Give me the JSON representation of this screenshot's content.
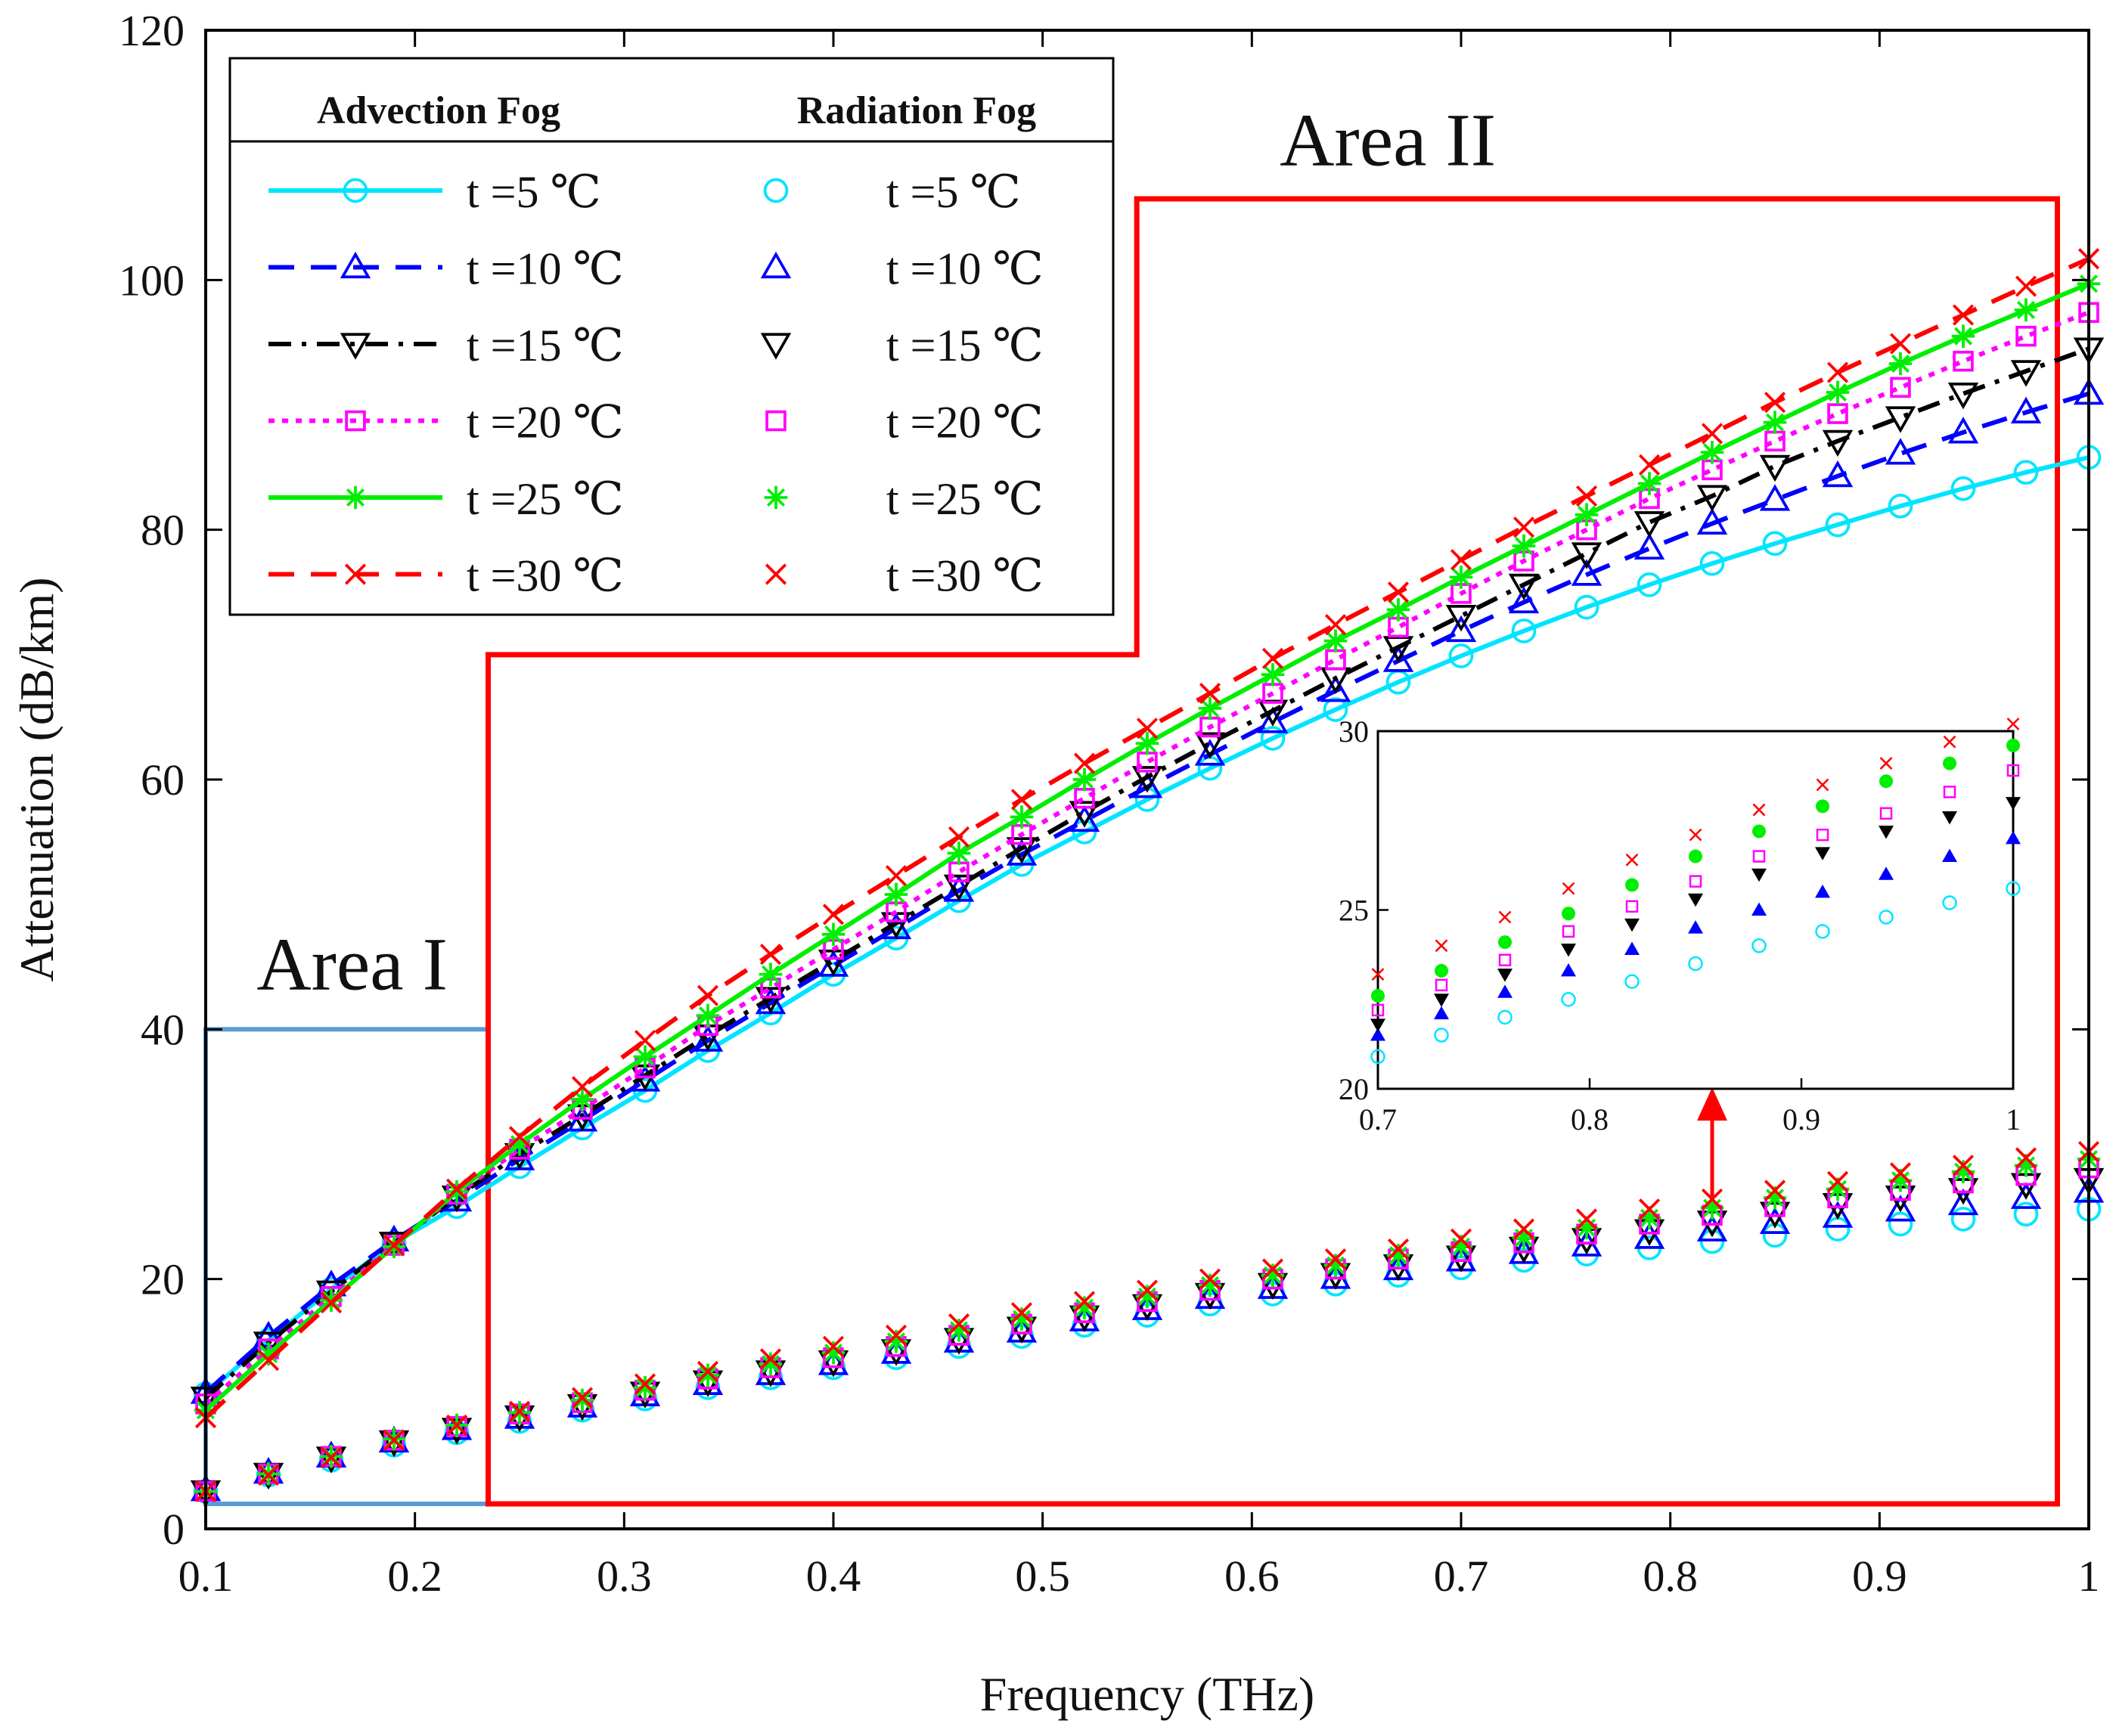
{
  "chart_data": {
    "type": "line",
    "xlabel": "Frequency (THz)",
    "ylabel": "Attenuation (dB/km)",
    "xlim": [
      0.1,
      1
    ],
    "ylim": [
      0,
      120
    ],
    "x_ticks": [
      "0.1",
      "0.2",
      "0.3",
      "0.4",
      "0.5",
      "0.6",
      "0.7",
      "0.8",
      "0.9",
      "1"
    ],
    "y_ticks": [
      "0",
      "20",
      "40",
      "60",
      "80",
      "100",
      "120"
    ],
    "x": [
      0.1,
      0.13,
      0.16,
      0.19,
      0.22,
      0.25,
      0.28,
      0.31,
      0.34,
      0.37,
      0.4,
      0.43,
      0.46,
      0.49,
      0.52,
      0.55,
      0.58,
      0.61,
      0.64,
      0.67,
      0.7,
      0.73,
      0.76,
      0.79,
      0.82,
      0.85,
      0.88,
      0.91,
      0.94,
      0.97,
      1.0
    ],
    "legend": {
      "advection_heading": "Advection Fog",
      "radiation_heading": "Radiation Fog",
      "entries": [
        "t =5 ℃",
        "t =10 ℃",
        "t =15 ℃",
        "t =20 ℃",
        "t =25 ℃",
        "t =30 ℃"
      ]
    },
    "series": [
      {
        "name": "Advection Fog t=5 ℃",
        "group": "advection",
        "color": "#00e5ff",
        "marker": "circle",
        "line": "solid",
        "values": [
          10.8,
          15.1,
          19.2,
          22.9,
          25.8,
          29.0,
          32.1,
          35.1,
          38.3,
          41.3,
          44.4,
          47.3,
          50.3,
          53.2,
          55.8,
          58.4,
          60.9,
          63.3,
          65.6,
          67.8,
          69.9,
          71.9,
          73.8,
          75.6,
          77.3,
          78.9,
          80.4,
          81.9,
          83.3,
          84.6,
          85.8
        ]
      },
      {
        "name": "Advection Fog t=10 ℃",
        "group": "advection",
        "color": "#0000ff",
        "marker": "triangle-up",
        "line": "dashed",
        "values": [
          10.9,
          15.4,
          19.5,
          23.1,
          26.3,
          29.6,
          32.7,
          35.9,
          39.1,
          42.1,
          45.1,
          48.1,
          51.1,
          54.0,
          56.7,
          59.4,
          62.0,
          64.6,
          67.1,
          69.5,
          71.9,
          74.2,
          76.4,
          78.5,
          80.5,
          82.4,
          84.3,
          86.1,
          87.8,
          89.4,
          90.9
        ]
      },
      {
        "name": "Advection Fog t=15 ℃",
        "group": "advection",
        "color": "#000000",
        "marker": "triangle-down",
        "line": "dashdot",
        "values": [
          10.5,
          14.9,
          19.0,
          22.9,
          26.6,
          30.0,
          33.1,
          36.3,
          39.5,
          42.5,
          45.5,
          48.5,
          51.5,
          54.5,
          57.4,
          60.2,
          62.9,
          65.5,
          68.1,
          70.6,
          73.1,
          75.6,
          78.1,
          80.6,
          82.7,
          85.1,
          87.1,
          89.0,
          90.9,
          92.7,
          94.5
        ]
      },
      {
        "name": "Advection Fog t=20 ℃",
        "group": "advection",
        "color": "#ff00ff",
        "marker": "square",
        "line": "dotted",
        "values": [
          10.0,
          14.4,
          18.6,
          22.7,
          26.8,
          30.4,
          33.6,
          36.9,
          40.3,
          43.3,
          46.4,
          49.4,
          52.6,
          55.6,
          58.5,
          61.4,
          64.2,
          66.9,
          69.6,
          72.2,
          74.9,
          77.5,
          80.0,
          82.5,
          84.8,
          87.1,
          89.3,
          91.4,
          93.5,
          95.5,
          97.4
        ]
      },
      {
        "name": "Advection Fog t=25 ℃",
        "group": "advection",
        "color": "#00ee00",
        "marker": "asterisk",
        "line": "solid",
        "values": [
          9.5,
          14.0,
          18.3,
          22.6,
          27.0,
          30.8,
          34.4,
          37.8,
          41.1,
          44.4,
          47.6,
          50.8,
          54.1,
          57.0,
          60.0,
          62.9,
          65.7,
          68.4,
          71.1,
          73.6,
          76.2,
          78.7,
          81.2,
          83.7,
          86.2,
          88.6,
          91.0,
          93.3,
          95.5,
          97.6,
          99.7
        ]
      },
      {
        "name": "Advection Fog t=30 ℃",
        "group": "advection",
        "color": "#ff0000",
        "marker": "x",
        "line": "dashed",
        "values": [
          8.9,
          13.5,
          18.1,
          22.7,
          27.2,
          31.4,
          35.4,
          39.1,
          42.7,
          46.0,
          49.2,
          52.3,
          55.4,
          58.4,
          61.3,
          64.1,
          66.9,
          69.7,
          72.4,
          75.0,
          77.6,
          80.2,
          82.7,
          85.2,
          87.7,
          90.2,
          92.6,
          94.9,
          97.2,
          99.5,
          101.7
        ]
      },
      {
        "name": "Radiation Fog t=5 ℃",
        "group": "radiation",
        "color": "#00e5ff",
        "marker": "circle",
        "values": [
          3.0,
          4.3,
          5.5,
          6.7,
          7.7,
          8.6,
          9.5,
          10.4,
          11.3,
          12.1,
          12.9,
          13.7,
          14.6,
          15.4,
          16.3,
          17.1,
          18.0,
          18.8,
          19.6,
          20.3,
          20.9,
          21.5,
          22.0,
          22.5,
          23.0,
          23.5,
          24.0,
          24.4,
          24.8,
          25.2,
          25.6
        ]
      },
      {
        "name": "Radiation Fog t=10 ℃",
        "group": "radiation",
        "color": "#0000ff",
        "marker": "triangle-up",
        "values": [
          3.1,
          4.5,
          5.8,
          7.0,
          8.0,
          8.9,
          9.8,
          10.7,
          11.6,
          12.4,
          13.2,
          14.1,
          15.0,
          15.8,
          16.7,
          17.6,
          18.5,
          19.3,
          20.1,
          20.8,
          21.5,
          22.1,
          22.7,
          23.3,
          23.9,
          24.5,
          25.0,
          25.5,
          26.0,
          26.5,
          27.0
        ]
      },
      {
        "name": "Radiation Fog t=15 ℃",
        "group": "radiation",
        "color": "#000000",
        "marker": "triangle-down",
        "values": [
          3.0,
          4.4,
          5.7,
          7.0,
          8.0,
          9.0,
          9.9,
          10.9,
          11.8,
          12.6,
          13.4,
          14.3,
          15.2,
          16.1,
          17.0,
          17.9,
          18.8,
          19.6,
          20.4,
          21.1,
          21.8,
          22.5,
          23.2,
          23.9,
          24.6,
          25.3,
          26.0,
          26.6,
          27.2,
          27.6,
          28.0
        ]
      },
      {
        "name": "Radiation Fog t=20 ℃",
        "group": "radiation",
        "color": "#ff00ff",
        "marker": "square",
        "values": [
          3.0,
          4.4,
          5.8,
          7.1,
          8.2,
          9.2,
          10.1,
          11.1,
          12.0,
          12.9,
          13.7,
          14.6,
          15.5,
          16.4,
          17.3,
          18.2,
          19.1,
          20.0,
          20.8,
          21.6,
          22.2,
          22.9,
          23.6,
          24.4,
          25.1,
          25.8,
          26.5,
          27.1,
          27.7,
          28.3,
          28.9
        ]
      },
      {
        "name": "Radiation Fog t=25 ℃",
        "group": "radiation",
        "color": "#00ee00",
        "marker": "asterisk",
        "values": [
          3.0,
          4.4,
          5.8,
          7.2,
          8.3,
          9.3,
          10.3,
          11.3,
          12.3,
          13.2,
          14.1,
          15.0,
          15.9,
          16.8,
          17.7,
          18.6,
          19.5,
          20.3,
          21.1,
          21.9,
          22.6,
          23.3,
          24.1,
          24.9,
          25.7,
          26.5,
          27.2,
          27.9,
          28.6,
          29.1,
          29.6
        ]
      },
      {
        "name": "Radiation Fog t=30 ℃",
        "group": "radiation",
        "color": "#ff0000",
        "marker": "x",
        "values": [
          3.0,
          4.3,
          5.7,
          7.1,
          8.3,
          9.4,
          10.5,
          11.6,
          12.6,
          13.6,
          14.6,
          15.5,
          16.4,
          17.3,
          18.2,
          19.1,
          20.0,
          20.8,
          21.6,
          22.4,
          23.2,
          24.0,
          24.8,
          25.6,
          26.4,
          27.1,
          27.8,
          28.5,
          29.1,
          29.7,
          30.2
        ]
      }
    ],
    "annotations": {
      "area1": {
        "label": "Area I",
        "color": "#5b9bd5",
        "x_range": [
          0.1,
          0.235
        ],
        "y_range": [
          2,
          40
        ]
      },
      "area2": {
        "label": "Area II",
        "color": "#ff0000",
        "outline": [
          [
            0.235,
            2
          ],
          [
            0.235,
            70
          ],
          [
            0.545,
            70
          ],
          [
            0.545,
            106.5
          ],
          [
            0.985,
            106.5
          ],
          [
            0.985,
            2
          ]
        ]
      },
      "arrow": {
        "color": "#ff0000",
        "from": [
          0.82,
          26
        ],
        "to": [
          0.82,
          34.5
        ]
      }
    },
    "inset": {
      "xlim": [
        0.7,
        1
      ],
      "ylim": [
        20,
        30
      ],
      "x_ticks": [
        "0.7",
        "0.8",
        "0.9",
        "1"
      ],
      "y_ticks": [
        "20",
        "25",
        "30"
      ],
      "shows": "radiation"
    }
  }
}
